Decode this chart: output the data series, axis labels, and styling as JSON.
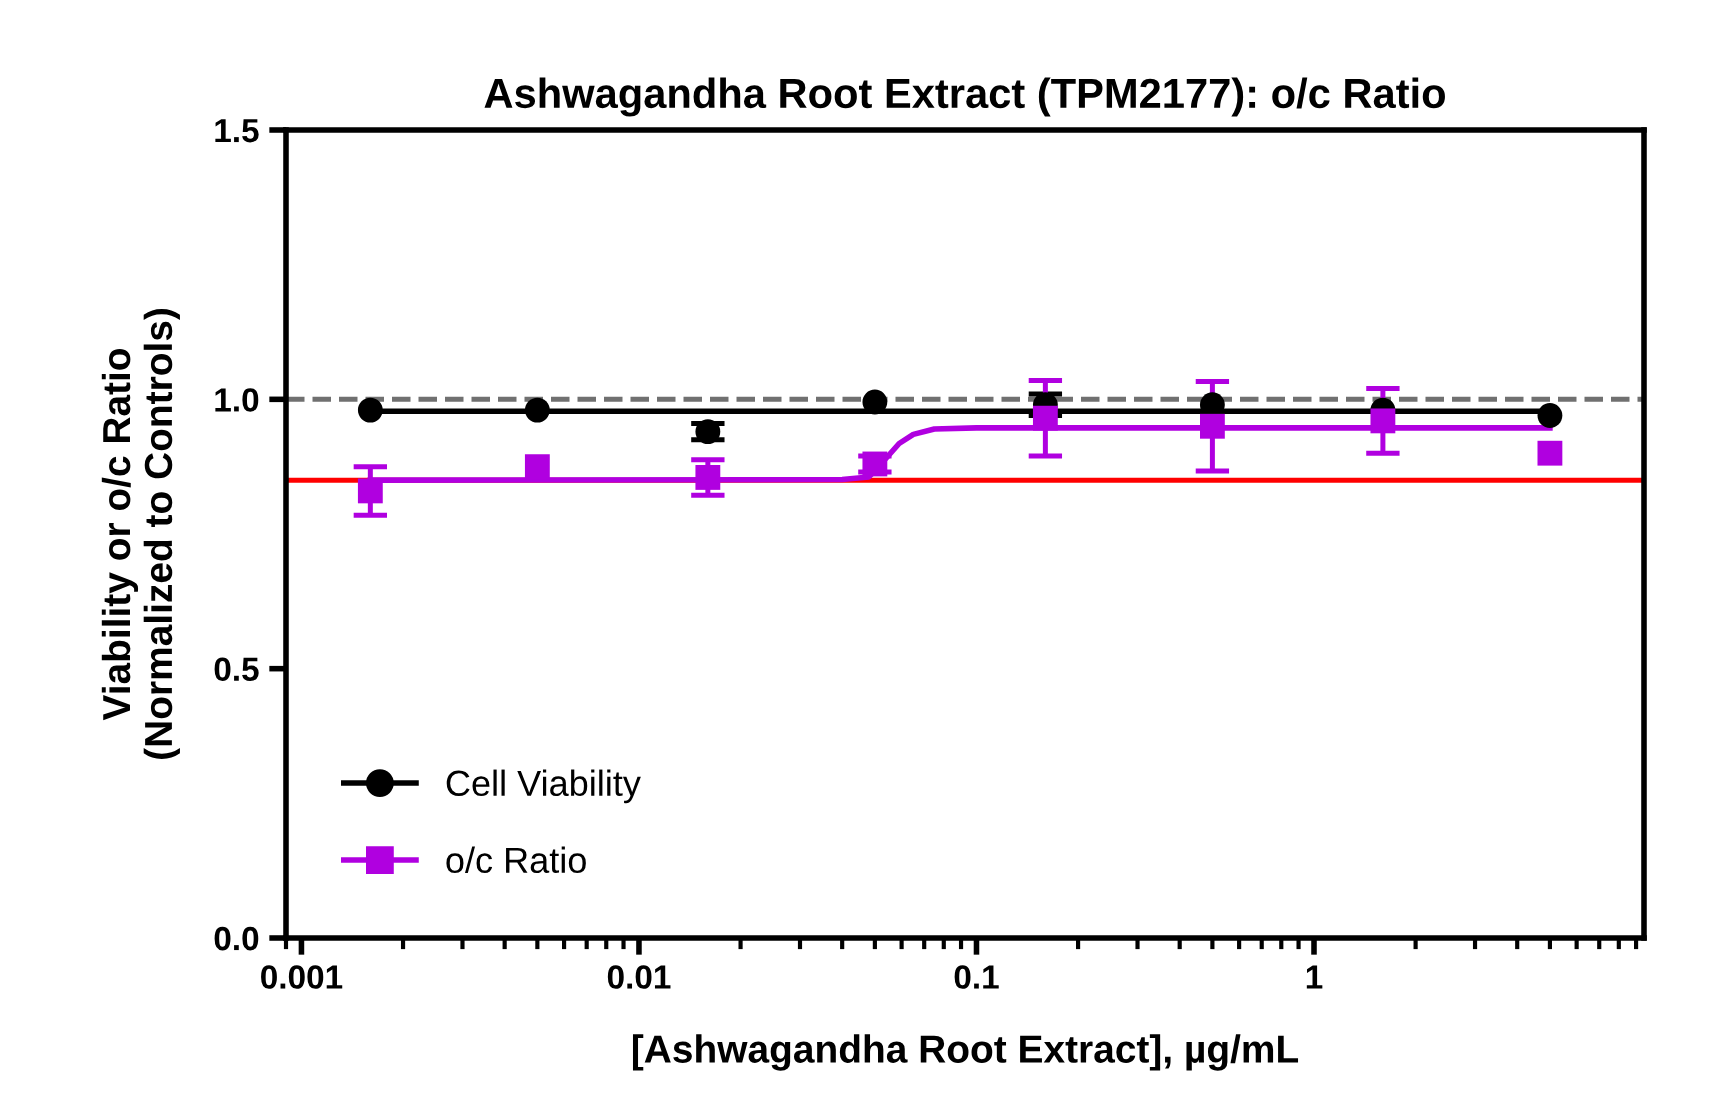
{
  "chart_data": {
    "type": "scatter",
    "title": "Ashwagandha Root Extract (TPM2177): o/c Ratio",
    "xlabel": "[Ashwagandha Root Extract], µg/mL",
    "ylabel": "Viability or o/c Ratio\n(Normalized to Controls)",
    "log": "x",
    "xlim": [
      0.0009,
      9.5
    ],
    "xticks": [
      {
        "value": 0.001,
        "label": "0.001"
      },
      {
        "value": 0.01,
        "label": "0.01"
      },
      {
        "value": 0.1,
        "label": "0.1"
      },
      {
        "value": 1,
        "label": "1"
      }
    ],
    "ylim": [
      0,
      1.5
    ],
    "yticks": [
      {
        "value": 0,
        "label": "0.0"
      },
      {
        "value": 0.5,
        "label": "0.5"
      },
      {
        "value": 1.0,
        "label": "1.0"
      },
      {
        "value": 1.5,
        "label": "1.5"
      }
    ],
    "grid": false,
    "legend": "bottom left",
    "series": [
      {
        "type": "line",
        "color": "#000000",
        "marker": "none",
        "x": [
          0.0016,
          5
        ],
        "values": [
          0.978,
          0.978
        ]
      },
      {
        "type": "line",
        "color": "#b000e0",
        "marker": "none",
        "x": [
          0.0016,
          0.04,
          0.048,
          0.053,
          0.059,
          0.065,
          0.075,
          0.1,
          5
        ],
        "values": [
          0.85,
          0.851,
          0.856,
          0.885,
          0.918,
          0.935,
          0.945,
          0.947,
          0.947
        ]
      },
      {
        "name": "Cell Viability",
        "color": "#000000",
        "marker": "circle",
        "x": [
          0.0016,
          0.005,
          0.016,
          0.05,
          0.16,
          0.5,
          1.6,
          5
        ],
        "values": [
          0.98,
          0.98,
          0.94,
          0.995,
          0.99,
          0.99,
          0.98,
          0.97
        ],
        "errors": [
          null,
          null,
          0.015,
          null,
          0.02,
          null,
          null,
          null
        ]
      },
      {
        "name": "o/c Ratio",
        "color": "#b000e0",
        "marker": "square",
        "x": [
          0.0016,
          0.005,
          0.016,
          0.05,
          0.16,
          0.5,
          1.6,
          5
        ],
        "values": [
          0.83,
          0.875,
          0.855,
          0.88,
          0.965,
          0.95,
          0.96,
          0.9
        ],
        "errors": [
          0.045,
          null,
          0.033,
          0.015,
          0.07,
          0.083,
          0.06,
          null
        ]
      }
    ],
    "ref_lines": [
      {
        "axis": "y",
        "value": 1.0,
        "label": null,
        "color": "#707070",
        "line_style": "dashed"
      },
      {
        "axis": "y",
        "value": 0.85,
        "label": null,
        "color": "#ff0000",
        "line_style": "solid"
      }
    ]
  }
}
